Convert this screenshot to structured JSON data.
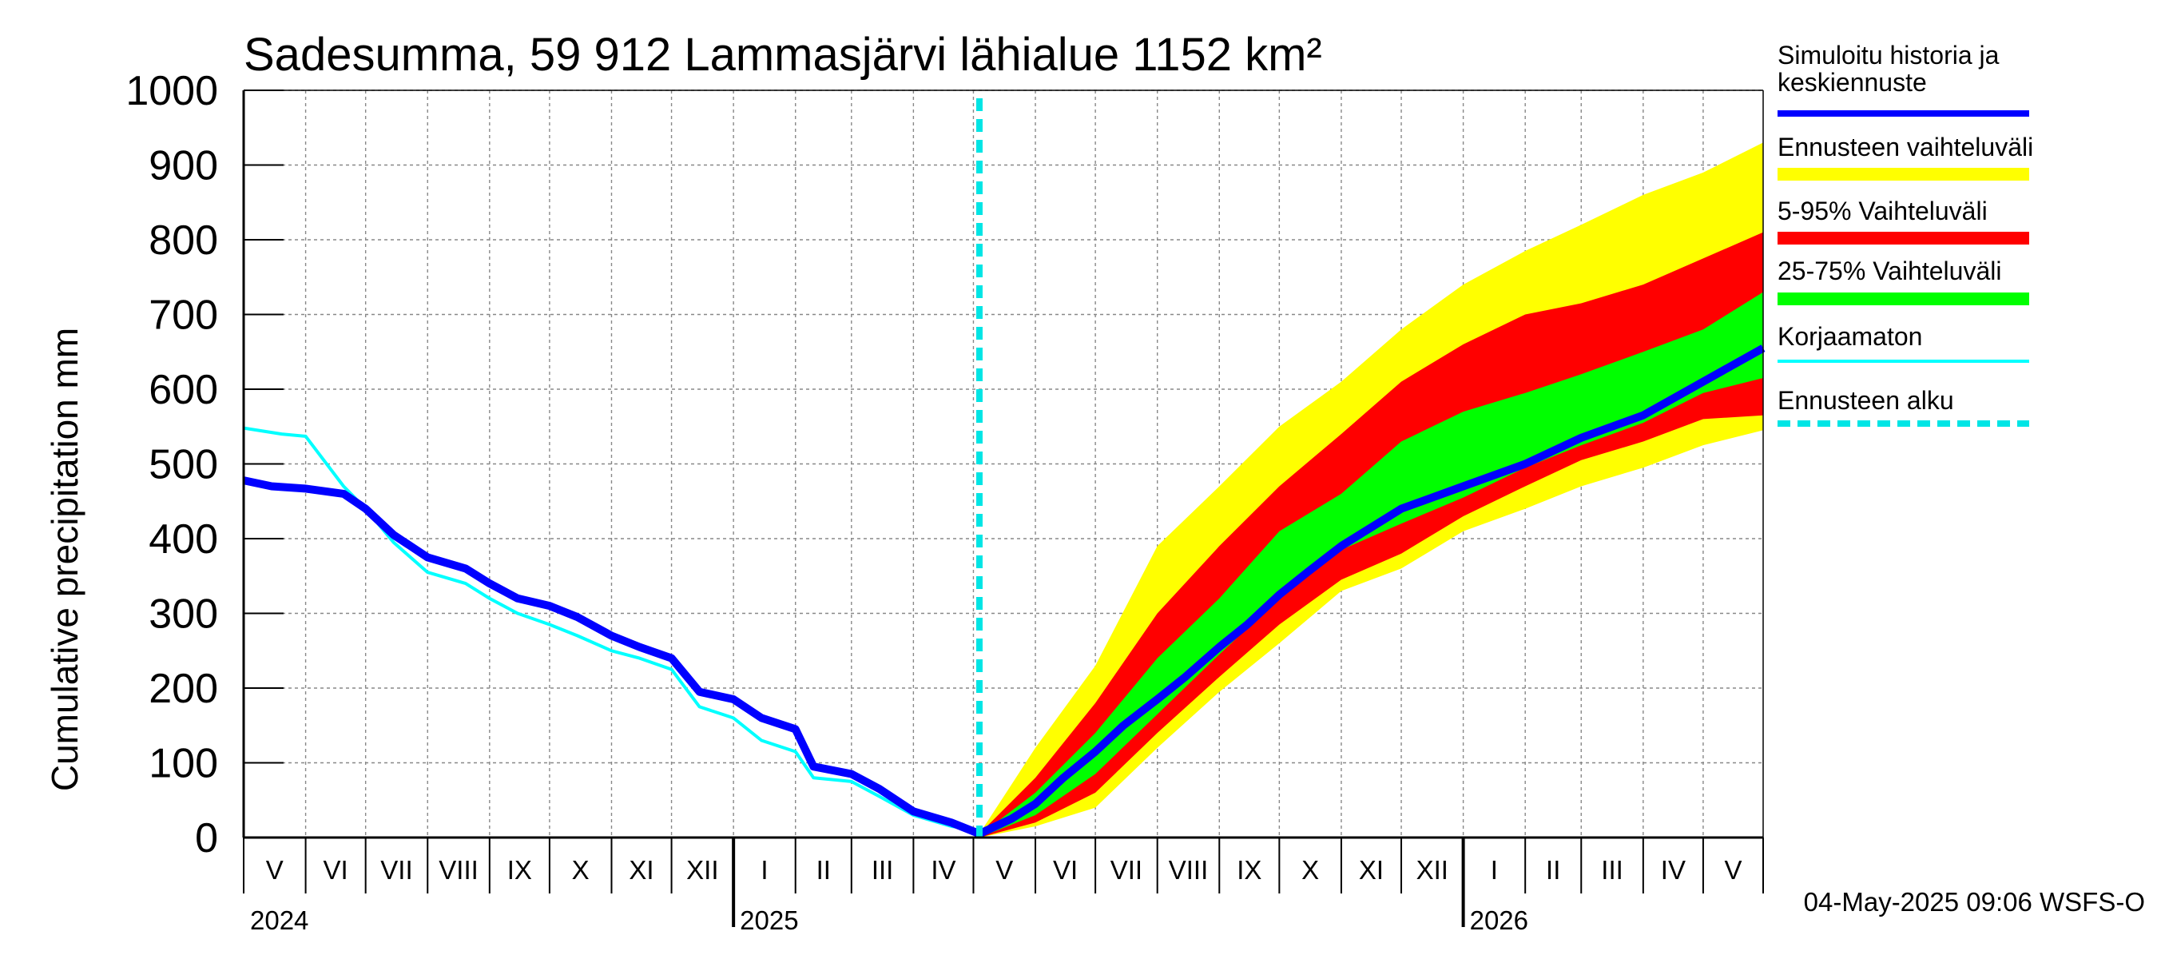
{
  "chart_data": {
    "type": "area",
    "title": "Sadesumma, 59 912 Lammasjärvi lähialue 1152 km²",
    "ylabel": "Cumulative precipitation   mm",
    "ylim": [
      0,
      1000
    ],
    "yticks": [
      0,
      100,
      200,
      300,
      400,
      500,
      600,
      700,
      800,
      900,
      1000
    ],
    "xlim": [
      "2024-05-01",
      "2026-05-31"
    ],
    "grid": true,
    "forecast_start": "2025-05-04",
    "months": [
      {
        "label": "V",
        "start": "2024-05-01"
      },
      {
        "label": "VI",
        "start": "2024-06-01"
      },
      {
        "label": "VII",
        "start": "2024-07-01"
      },
      {
        "label": "VIII",
        "start": "2024-08-01"
      },
      {
        "label": "IX",
        "start": "2024-09-01"
      },
      {
        "label": "X",
        "start": "2024-10-01"
      },
      {
        "label": "XI",
        "start": "2024-11-01"
      },
      {
        "label": "XII",
        "start": "2024-12-01"
      },
      {
        "label": "I",
        "start": "2025-01-01"
      },
      {
        "label": "II",
        "start": "2025-02-01"
      },
      {
        "label": "III",
        "start": "2025-03-01"
      },
      {
        "label": "IV",
        "start": "2025-04-01"
      },
      {
        "label": "V",
        "start": "2025-05-01"
      },
      {
        "label": "VI",
        "start": "2025-06-01"
      },
      {
        "label": "VII",
        "start": "2025-07-01"
      },
      {
        "label": "VIII",
        "start": "2025-08-01"
      },
      {
        "label": "IX",
        "start": "2025-09-01"
      },
      {
        "label": "X",
        "start": "2025-10-01"
      },
      {
        "label": "XI",
        "start": "2025-11-01"
      },
      {
        "label": "XII",
        "start": "2025-12-01"
      },
      {
        "label": "I",
        "start": "2026-01-01"
      },
      {
        "label": "II",
        "start": "2026-02-01"
      },
      {
        "label": "III",
        "start": "2026-03-01"
      },
      {
        "label": "IV",
        "start": "2026-04-01"
      },
      {
        "label": "V",
        "start": "2026-05-01"
      }
    ],
    "years": [
      {
        "label": "2024",
        "date": "2024-05-01"
      },
      {
        "label": "2025",
        "date": "2025-01-01"
      },
      {
        "label": "2026",
        "date": "2026-01-01"
      }
    ],
    "series": [
      {
        "name": "Simuloitu historia ja keskiennuste",
        "color": "#0000ff",
        "kind": "line",
        "x": [
          "2024-05-01",
          "2024-05-15",
          "2024-06-01",
          "2024-06-20",
          "2024-07-01",
          "2024-07-15",
          "2024-08-01",
          "2024-08-20",
          "2024-09-01",
          "2024-09-15",
          "2024-10-01",
          "2024-10-15",
          "2024-11-01",
          "2024-11-15",
          "2024-12-01",
          "2024-12-15",
          "2025-01-01",
          "2025-01-15",
          "2025-02-01",
          "2025-02-10",
          "2025-03-01",
          "2025-03-15",
          "2025-04-01",
          "2025-04-20",
          "2025-05-04",
          "2025-05-20",
          "2025-06-01",
          "2025-06-15",
          "2025-07-01",
          "2025-07-15",
          "2025-08-01",
          "2025-08-15",
          "2025-09-01",
          "2025-09-15",
          "2025-10-01",
          "2025-10-15",
          "2025-11-01",
          "2025-12-01",
          "2026-01-01",
          "2026-02-01",
          "2026-03-01",
          "2026-04-01",
          "2026-05-01",
          "2026-05-31"
        ],
        "y": [
          478,
          470,
          467,
          460,
          440,
          405,
          375,
          360,
          340,
          320,
          310,
          295,
          270,
          255,
          240,
          195,
          185,
          160,
          145,
          95,
          85,
          65,
          35,
          20,
          5,
          25,
          45,
          80,
          115,
          150,
          185,
          215,
          255,
          285,
          325,
          355,
          390,
          440,
          470,
          500,
          535,
          565,
          610,
          655
        ]
      },
      {
        "name": "Korjaamaton",
        "color": "#00ffff",
        "kind": "line",
        "x": [
          "2024-05-01",
          "2024-05-20",
          "2024-06-01",
          "2024-06-20",
          "2024-07-01",
          "2024-07-15",
          "2024-08-01",
          "2024-08-20",
          "2024-09-01",
          "2024-09-15",
          "2024-10-01",
          "2024-10-15",
          "2024-11-01",
          "2024-11-15",
          "2024-12-01",
          "2024-12-15",
          "2025-01-01",
          "2025-01-15",
          "2025-02-01",
          "2025-02-10",
          "2025-03-01",
          "2025-03-15",
          "2025-04-01",
          "2025-04-20",
          "2025-05-04"
        ],
        "y": [
          548,
          540,
          537,
          470,
          440,
          395,
          355,
          340,
          320,
          300,
          285,
          270,
          250,
          240,
          225,
          175,
          160,
          130,
          115,
          80,
          75,
          55,
          30,
          15,
          10
        ]
      }
    ],
    "bands": [
      {
        "name": "Ennusteen vaihteluväli",
        "color": "#ffff00",
        "x": [
          "2025-05-04",
          "2025-06-01",
          "2025-07-01",
          "2025-08-01",
          "2025-09-01",
          "2025-10-01",
          "2025-11-01",
          "2025-12-01",
          "2026-01-01",
          "2026-02-01",
          "2026-03-01",
          "2026-04-01",
          "2026-05-01",
          "2026-05-31"
        ],
        "lower": [
          0,
          15,
          40,
          120,
          195,
          260,
          330,
          360,
          410,
          440,
          470,
          495,
          525,
          545
        ],
        "upper": [
          5,
          120,
          230,
          390,
          470,
          550,
          610,
          680,
          740,
          785,
          820,
          860,
          890,
          930
        ]
      },
      {
        "name": "5-95% Vaihteluväli",
        "color": "#ff0000",
        "x": [
          "2025-05-04",
          "2025-06-01",
          "2025-07-01",
          "2025-08-01",
          "2025-09-01",
          "2025-10-01",
          "2025-11-01",
          "2025-12-01",
          "2026-01-01",
          "2026-02-01",
          "2026-03-01",
          "2026-04-01",
          "2026-05-01",
          "2026-05-31"
        ],
        "lower": [
          0,
          20,
          60,
          140,
          215,
          285,
          345,
          380,
          430,
          470,
          505,
          530,
          560,
          565
        ],
        "upper": [
          5,
          80,
          180,
          300,
          390,
          470,
          540,
          610,
          660,
          700,
          715,
          740,
          775,
          810
        ]
      },
      {
        "name": "25-75% Vaihteluväli",
        "color": "#00ff00",
        "x": [
          "2025-05-04",
          "2025-06-01",
          "2025-07-01",
          "2025-08-01",
          "2025-09-01",
          "2025-10-01",
          "2025-11-01",
          "2025-12-01",
          "2026-01-01",
          "2026-02-01",
          "2026-03-01",
          "2026-04-01",
          "2026-05-01",
          "2026-05-31"
        ],
        "lower": [
          0,
          30,
          85,
          165,
          245,
          320,
          385,
          420,
          455,
          495,
          525,
          555,
          595,
          615
        ],
        "upper": [
          3,
          60,
          140,
          240,
          320,
          410,
          460,
          530,
          570,
          595,
          620,
          650,
          680,
          730
        ]
      }
    ]
  },
  "legend": [
    {
      "label": "Simuloitu historia ja",
      "label2": "keskiennuste",
      "color": "#0000ff",
      "style": "thick"
    },
    {
      "label": "Ennusteen vaihteluväli",
      "color": "#ffff00",
      "style": "band"
    },
    {
      "label": "5-95% Vaihteluväli",
      "color": "#ff0000",
      "style": "band"
    },
    {
      "label": "25-75% Vaihteluväli",
      "color": "#00ff00",
      "style": "band"
    },
    {
      "label": "Korjaamaton",
      "color": "#00ffff",
      "style": "thin"
    },
    {
      "label": "Ennusteen alku",
      "color": "#00e5e5",
      "style": "dashed"
    }
  ],
  "footer": "04-May-2025 09:06 WSFS-O"
}
